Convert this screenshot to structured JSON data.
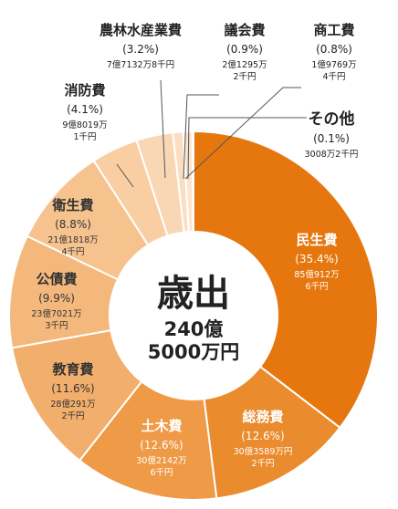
{
  "chart_data": {
    "type": "pie",
    "variant": "donut",
    "center": {
      "title": "歳出",
      "total_line1": "240億",
      "total_line2": "5000万円"
    },
    "slices": [
      {
        "name": "民生費",
        "pct": 35.4,
        "pct_label": "(35.4%)",
        "amount_line1": "85億912万",
        "amount_line2": "6千円",
        "color": "#E6770F",
        "text_color": "#ffffff"
      },
      {
        "name": "総務費",
        "pct": 12.6,
        "pct_label": "(12.6%)",
        "amount_line1": "30億3589万円",
        "amount_line2": "2千円",
        "color": "#EA8B2E",
        "text_color": "#ffffff"
      },
      {
        "name": "土木費",
        "pct": 12.6,
        "pct_label": "(12.6%)",
        "amount_line1": "30億2142万",
        "amount_line2": "6千円",
        "color": "#EE9A46",
        "text_color": "#ffffff"
      },
      {
        "name": "教育費",
        "pct": 11.6,
        "pct_label": "(11.6%)",
        "amount_line1": "28億291万",
        "amount_line2": "2千円",
        "color": "#F2AE6C",
        "text_color": "#333333"
      },
      {
        "name": "公債費",
        "pct": 9.9,
        "pct_label": "(9.9%)",
        "amount_line1": "23億7021万",
        "amount_line2": "3千円",
        "color": "#F4B87D",
        "text_color": "#333333"
      },
      {
        "name": "衛生費",
        "pct": 8.8,
        "pct_label": "(8.8%)",
        "amount_line1": "21億1818万",
        "amount_line2": "4千円",
        "color": "#F6C38F",
        "text_color": "#333333"
      },
      {
        "name": "消防費",
        "pct": 4.1,
        "pct_label": "(4.1%)",
        "amount_line1": "9億8019万",
        "amount_line2": "1千円",
        "color": "#F8CEA2",
        "text_color": "#333333"
      },
      {
        "name": "農林水産業費",
        "pct": 3.2,
        "pct_label": "(3.2%)",
        "amount_line1": "7億7132万8千円",
        "amount_line2": "",
        "color": "#F9D7B4",
        "text_color": "#333333"
      },
      {
        "name": "議会費",
        "pct": 0.9,
        "pct_label": "(0.9%)",
        "amount_line1": "2億1295万",
        "amount_line2": "2千円",
        "color": "#FBDEC2",
        "text_color": "#333333"
      },
      {
        "name": "商工費",
        "pct": 0.8,
        "pct_label": "(0.8%)",
        "amount_line1": "1億9769万",
        "amount_line2": "4千円",
        "color": "#FCE4CE",
        "text_color": "#333333"
      },
      {
        "name": "その他",
        "pct": 0.1,
        "pct_label": "(0.1%)",
        "amount_line1": "3008万2千円",
        "amount_line2": "",
        "color": "#FDEBDB",
        "text_color": "#333333"
      }
    ]
  }
}
